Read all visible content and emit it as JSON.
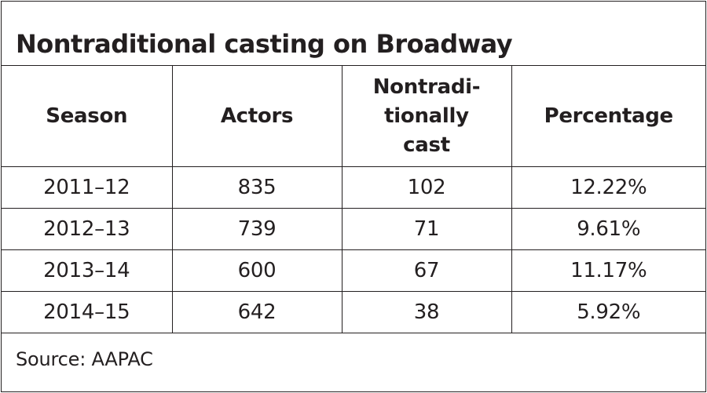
{
  "title": "Nontraditional casting on Broadway",
  "columns": [
    "Season",
    "Actors",
    "Nontradi-\ntionally\ncast",
    "Percentage"
  ],
  "rows": [
    [
      "2011–12",
      "835",
      "102",
      "12.22%"
    ],
    [
      "2012–13",
      "739",
      "71",
      "9.61%"
    ],
    [
      "2013–14",
      "600",
      "67",
      "11.17%"
    ],
    [
      "2014–15",
      "642",
      "38",
      "5.92%"
    ]
  ],
  "source": "Source: AAPAC",
  "colors": {
    "text": "#231f20",
    "border": "#231f20",
    "background": "#ffffff"
  }
}
